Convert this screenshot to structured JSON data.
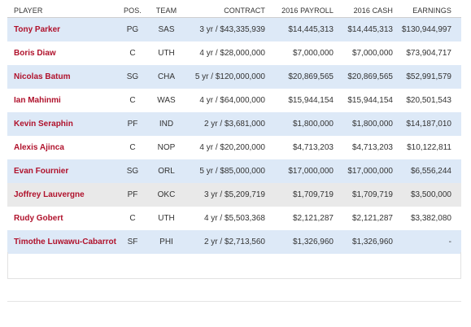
{
  "columns": {
    "player": "PLAYER",
    "pos": "POS.",
    "team": "TEAM",
    "contract": "CONTRACT",
    "payroll": "2016 PAYROLL",
    "cash": "2016 CASH",
    "earnings": "EARNINGS"
  },
  "rows": [
    {
      "player": "Tony Parker",
      "pos": "PG",
      "team": "SAS",
      "contract": "3 yr / $43,335,939",
      "payroll": "$14,445,313",
      "cash": "$14,445,313",
      "earnings": "$130,944,997"
    },
    {
      "player": "Boris Diaw",
      "pos": "C",
      "team": "UTH",
      "contract": "4 yr / $28,000,000",
      "payroll": "$7,000,000",
      "cash": "$7,000,000",
      "earnings": "$73,904,717"
    },
    {
      "player": "Nicolas Batum",
      "pos": "SG",
      "team": "CHA",
      "contract": "5 yr / $120,000,000",
      "payroll": "$20,869,565",
      "cash": "$20,869,565",
      "earnings": "$52,991,579"
    },
    {
      "player": "Ian Mahinmi",
      "pos": "C",
      "team": "WAS",
      "contract": "4 yr / $64,000,000",
      "payroll": "$15,944,154",
      "cash": "$15,944,154",
      "earnings": "$20,501,543"
    },
    {
      "player": "Kevin Seraphin",
      "pos": "PF",
      "team": "IND",
      "contract": "2 yr / $3,681,000",
      "payroll": "$1,800,000",
      "cash": "$1,800,000",
      "earnings": "$14,187,010"
    },
    {
      "player": "Alexis Ajinca",
      "pos": "C",
      "team": "NOP",
      "contract": "4 yr / $20,200,000",
      "payroll": "$4,713,203",
      "cash": "$4,713,203",
      "earnings": "$10,122,811"
    },
    {
      "player": "Evan Fournier",
      "pos": "SG",
      "team": "ORL",
      "contract": "5 yr / $85,000,000",
      "payroll": "$17,000,000",
      "cash": "$17,000,000",
      "earnings": "$6,556,244"
    },
    {
      "player": "Joffrey Lauvergne",
      "pos": "PF",
      "team": "OKC",
      "contract": "3 yr / $5,209,719",
      "payroll": "$1,709,719",
      "cash": "$1,709,719",
      "earnings": "$3,500,000"
    },
    {
      "player": "Rudy Gobert",
      "pos": "C",
      "team": "UTH",
      "contract": "4 yr / $5,503,368",
      "payroll": "$2,121,287",
      "cash": "$2,121,287",
      "earnings": "$3,382,080"
    },
    {
      "player": "Timothe Luwawu-Cabarrot",
      "pos": "SF",
      "team": "PHI",
      "contract": "2 yr / $2,713,560",
      "payroll": "$1,326,960",
      "cash": "$1,326,960",
      "earnings": "-"
    }
  ],
  "row_styles": [
    "blue",
    "white",
    "blue",
    "white",
    "blue",
    "white",
    "blue",
    "gray",
    "white",
    "blue"
  ]
}
